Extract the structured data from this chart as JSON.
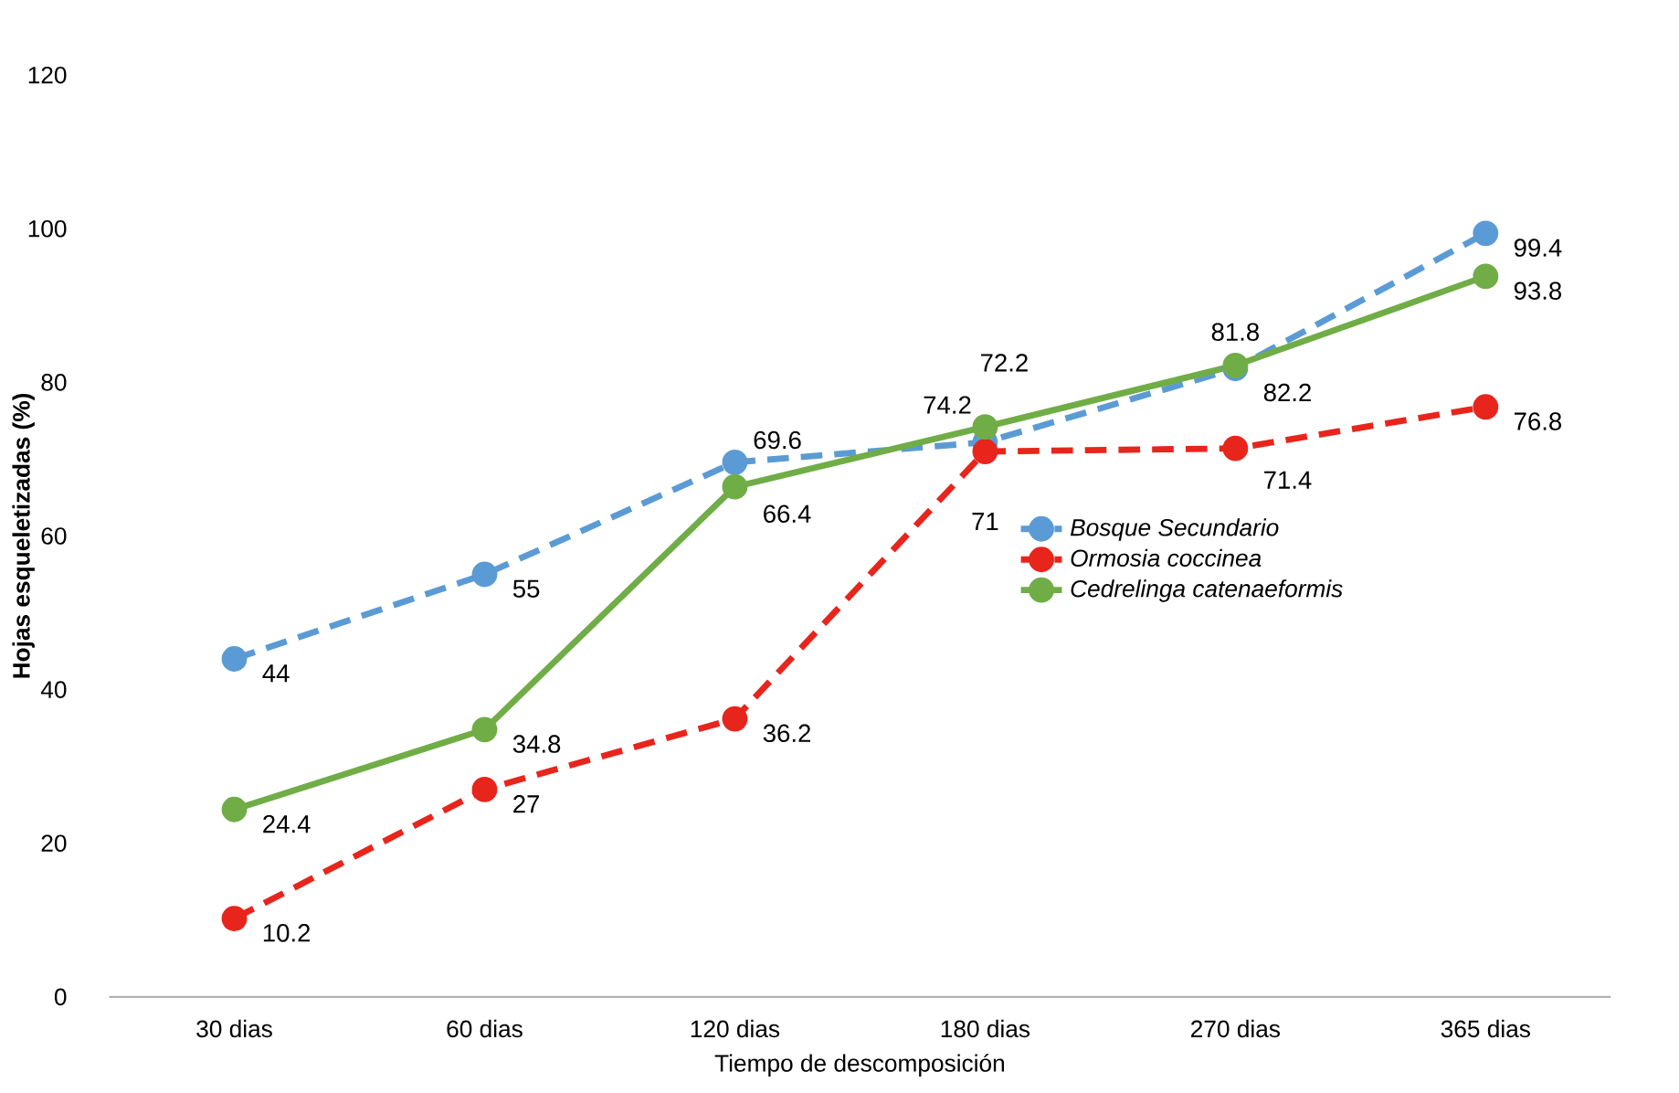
{
  "chart_data": {
    "type": "line",
    "xlabel": "Tiempo de descomposición",
    "ylabel": "Hojas esqueletizadas (%)",
    "categories": [
      "30 dias",
      "60 dias",
      "120 dias",
      "180 dias",
      "270 dias",
      "365 dias"
    ],
    "series": [
      {
        "name": "Bosque Secundario",
        "color": "#5b9bd5",
        "line_style": "dashed",
        "values": [
          44,
          55,
          69.6,
          72.2,
          81.8,
          99.4
        ]
      },
      {
        "name": "Ormosia coccinea",
        "color": "#e8251c",
        "line_style": "dashed",
        "values": [
          10.2,
          27,
          36.2,
          71,
          71.4,
          76.8
        ]
      },
      {
        "name": "Cedrelinga catenaeformis",
        "color": "#70ad47",
        "line_style": "solid",
        "values": [
          24.4,
          34.8,
          66.4,
          74.2,
          82.2,
          93.8
        ]
      }
    ],
    "ylim": [
      0,
      120
    ],
    "yticks": [
      0,
      20,
      40,
      60,
      80,
      100,
      120
    ],
    "grid": false,
    "legend": "right",
    "marker": "circle",
    "data_labels": true
  }
}
